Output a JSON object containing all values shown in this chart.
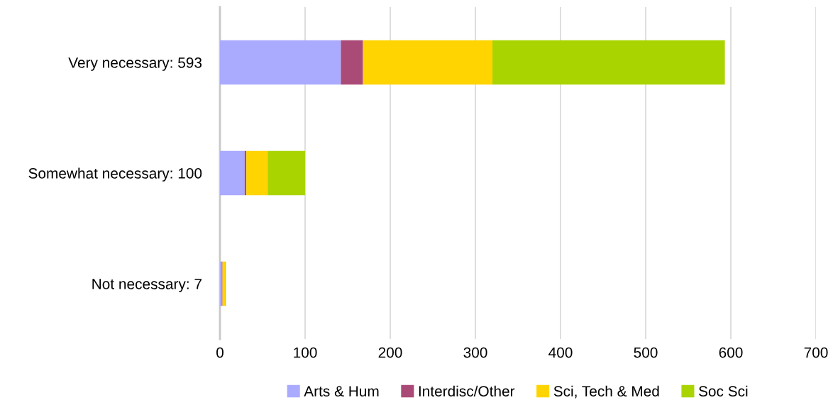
{
  "chart_data": {
    "type": "bar",
    "orientation": "horizontal",
    "stacked": true,
    "categories": [
      "Very necessary: 593",
      "Somewhat necessary: 100",
      "Not necessary: 7"
    ],
    "series": [
      {
        "name": "Arts & Hum",
        "color": "#aaaaff",
        "values": [
          142,
          29,
          2
        ]
      },
      {
        "name": "Interdisc/Other",
        "color": "#aa4a77",
        "values": [
          26,
          2,
          1
        ]
      },
      {
        "name": "Sci, Tech & Med",
        "color": "#ffd400",
        "values": [
          152,
          25,
          3
        ]
      },
      {
        "name": "Soc Sci",
        "color": "#aad400",
        "values": [
          273,
          44,
          1
        ]
      }
    ],
    "xlim": [
      0,
      700
    ],
    "xticks": [
      0,
      100,
      200,
      300,
      400,
      500,
      600,
      700
    ],
    "grid": "x",
    "legend": "bottom"
  }
}
